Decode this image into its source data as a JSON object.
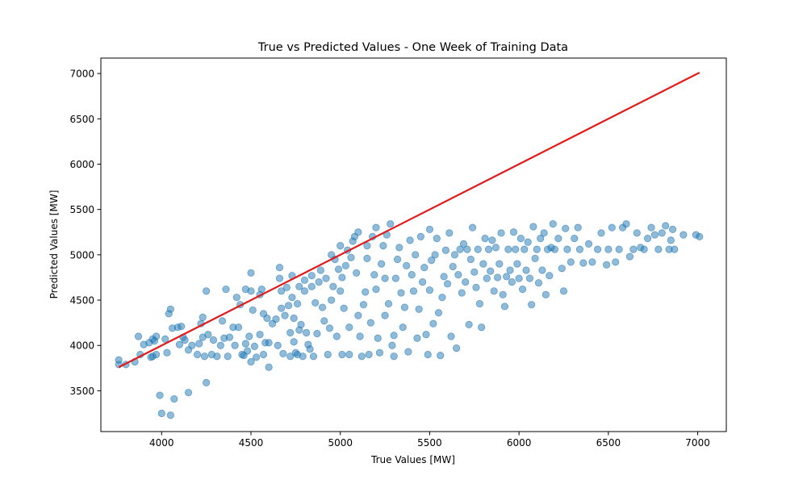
{
  "chart_data": {
    "type": "scatter",
    "title": "True vs Predicted Values - One Week of Training Data",
    "xlabel": "True Values [MW]",
    "ylabel": "Predicted Values [MW]",
    "xlim": [
      3660,
      7160
    ],
    "ylim": [
      3050,
      7170
    ],
    "xticks": [
      4000,
      4500,
      5000,
      5500,
      6000,
      6500,
      7000
    ],
    "yticks": [
      3500,
      4000,
      4500,
      5000,
      5500,
      6000,
      6500,
      7000
    ],
    "grid": false,
    "colors": {
      "points": "#1f77b4",
      "ideal_line": "#e31a1c"
    },
    "ideal_line": {
      "x": [
        3760,
        7010
      ],
      "y": [
        3760,
        7010
      ]
    },
    "series": [
      {
        "points": [
          [
            3760,
            3840
          ],
          [
            3760,
            3790
          ],
          [
            3800,
            3790
          ],
          [
            3850,
            3820
          ],
          [
            3880,
            3900
          ],
          [
            3870,
            4100
          ],
          [
            3900,
            4010
          ],
          [
            3930,
            4030
          ],
          [
            3940,
            3870
          ],
          [
            3950,
            4070
          ],
          [
            3950,
            3880
          ],
          [
            3960,
            4050
          ],
          [
            3970,
            3900
          ],
          [
            3970,
            4100
          ],
          [
            3990,
            3450
          ],
          [
            4000,
            3250
          ],
          [
            4020,
            4070
          ],
          [
            4030,
            3920
          ],
          [
            4040,
            4350
          ],
          [
            4050,
            4400
          ],
          [
            4050,
            3230
          ],
          [
            4060,
            4190
          ],
          [
            4070,
            3410
          ],
          [
            4090,
            4200
          ],
          [
            4100,
            4010
          ],
          [
            4110,
            4210
          ],
          [
            4120,
            4090
          ],
          [
            4130,
            4060
          ],
          [
            4150,
            3480
          ],
          [
            4150,
            3950
          ],
          [
            4170,
            4000
          ],
          [
            4200,
            3900
          ],
          [
            4210,
            4020
          ],
          [
            4220,
            4240
          ],
          [
            4230,
            4310
          ],
          [
            4230,
            4090
          ],
          [
            4240,
            3880
          ],
          [
            4250,
            4600
          ],
          [
            4250,
            3590
          ],
          [
            4260,
            4120
          ],
          [
            4280,
            3900
          ],
          [
            4290,
            4060
          ],
          [
            4310,
            3880
          ],
          [
            4330,
            4000
          ],
          [
            4340,
            4270
          ],
          [
            4350,
            4080
          ],
          [
            4360,
            4620
          ],
          [
            4370,
            3880
          ],
          [
            4380,
            4090
          ],
          [
            4400,
            4200
          ],
          [
            4410,
            4000
          ],
          [
            4420,
            4530
          ],
          [
            4430,
            4200
          ],
          [
            4440,
            4450
          ],
          [
            4450,
            3900
          ],
          [
            4460,
            3890
          ],
          [
            4470,
            4620
          ],
          [
            4470,
            4020
          ],
          [
            4480,
            3940
          ],
          [
            4490,
            4100
          ],
          [
            4500,
            3820
          ],
          [
            4500,
            4600
          ],
          [
            4500,
            4800
          ],
          [
            4510,
            4390
          ],
          [
            4520,
            3990
          ],
          [
            4530,
            3870
          ],
          [
            4550,
            4560
          ],
          [
            4550,
            4120
          ],
          [
            4560,
            4620
          ],
          [
            4570,
            3900
          ],
          [
            4570,
            4350
          ],
          [
            4580,
            4030
          ],
          [
            4590,
            4300
          ],
          [
            4600,
            4030
          ],
          [
            4600,
            3760
          ],
          [
            4620,
            4240
          ],
          [
            4640,
            4290
          ],
          [
            4650,
            4000
          ],
          [
            4660,
            4740
          ],
          [
            4660,
            4860
          ],
          [
            4670,
            4600
          ],
          [
            4670,
            4410
          ],
          [
            4680,
            3910
          ],
          [
            4690,
            4330
          ],
          [
            4700,
            4640
          ],
          [
            4710,
            4440
          ],
          [
            4720,
            4140
          ],
          [
            4720,
            3880
          ],
          [
            4730,
            4530
          ],
          [
            4730,
            4770
          ],
          [
            4740,
            4040
          ],
          [
            4740,
            4300
          ],
          [
            4750,
            3920
          ],
          [
            4760,
            4460
          ],
          [
            4760,
            3900
          ],
          [
            4770,
            4170
          ],
          [
            4770,
            4650
          ],
          [
            4780,
            4230
          ],
          [
            4790,
            3880
          ],
          [
            4800,
            4600
          ],
          [
            4800,
            4720
          ],
          [
            4810,
            4140
          ],
          [
            4820,
            4010
          ],
          [
            4830,
            3960
          ],
          [
            4840,
            4770
          ],
          [
            4840,
            4650
          ],
          [
            4850,
            3880
          ],
          [
            4860,
            4470
          ],
          [
            4870,
            4130
          ],
          [
            4880,
            4700
          ],
          [
            4890,
            4830
          ],
          [
            4900,
            4420
          ],
          [
            4910,
            4270
          ],
          [
            4920,
            4740
          ],
          [
            4930,
            3900
          ],
          [
            4940,
            4190
          ],
          [
            4950,
            4500
          ],
          [
            4950,
            5000
          ],
          [
            4960,
            4650
          ],
          [
            4970,
            4950
          ],
          [
            4980,
            4100
          ],
          [
            4990,
            4840
          ],
          [
            5000,
            4600
          ],
          [
            5000,
            5100
          ],
          [
            5010,
            3900
          ],
          [
            5010,
            4750
          ],
          [
            5020,
            4410
          ],
          [
            5030,
            4880
          ],
          [
            5040,
            5050
          ],
          [
            5050,
            4200
          ],
          [
            5050,
            3900
          ],
          [
            5060,
            4970
          ],
          [
            5070,
            5150
          ],
          [
            5080,
            5200
          ],
          [
            5090,
            4800
          ],
          [
            5100,
            4330
          ],
          [
            5100,
            5250
          ],
          [
            5110,
            4100
          ],
          [
            5120,
            3880
          ],
          [
            5130,
            4450
          ],
          [
            5140,
            4590
          ],
          [
            5150,
            5100
          ],
          [
            5150,
            4960
          ],
          [
            5160,
            3900
          ],
          [
            5170,
            4250
          ],
          [
            5180,
            5200
          ],
          [
            5190,
            4780
          ],
          [
            5200,
            4620
          ],
          [
            5200,
            5300
          ],
          [
            5210,
            4080
          ],
          [
            5220,
            3920
          ],
          [
            5230,
            4900
          ],
          [
            5240,
            5100
          ],
          [
            5250,
            4330
          ],
          [
            5250,
            4740
          ],
          [
            5260,
            5220
          ],
          [
            5270,
            4460
          ],
          [
            5280,
            5340
          ],
          [
            5290,
            4000
          ],
          [
            5300,
            4110
          ],
          [
            5300,
            3880
          ],
          [
            5310,
            4740
          ],
          [
            5320,
            4950
          ],
          [
            5330,
            5080
          ],
          [
            5340,
            4580
          ],
          [
            5350,
            4200
          ],
          [
            5360,
            4420
          ],
          [
            5370,
            4880
          ],
          [
            5380,
            3930
          ],
          [
            5390,
            5160
          ],
          [
            5400,
            4780
          ],
          [
            5410,
            4600
          ],
          [
            5420,
            5000
          ],
          [
            5430,
            4080
          ],
          [
            5440,
            4400
          ],
          [
            5450,
            5200
          ],
          [
            5460,
            4700
          ],
          [
            5470,
            4860
          ],
          [
            5480,
            4120
          ],
          [
            5490,
            3900
          ],
          [
            5500,
            5280
          ],
          [
            5500,
            4610
          ],
          [
            5510,
            4940
          ],
          [
            5520,
            4240
          ],
          [
            5530,
            5000
          ],
          [
            5540,
            5180
          ],
          [
            5550,
            4360
          ],
          [
            5560,
            3890
          ],
          [
            5570,
            4530
          ],
          [
            5580,
            4760
          ],
          [
            5590,
            5050
          ],
          [
            5600,
            4680
          ],
          [
            5610,
            5240
          ],
          [
            5620,
            4100
          ],
          [
            5630,
            4870
          ],
          [
            5640,
            5000
          ],
          [
            5650,
            3970
          ],
          [
            5660,
            4780
          ],
          [
            5670,
            5060
          ],
          [
            5680,
            4580
          ],
          [
            5690,
            5120
          ],
          [
            5700,
            4700
          ],
          [
            5710,
            5060
          ],
          [
            5720,
            4230
          ],
          [
            5730,
            4950
          ],
          [
            5740,
            5300
          ],
          [
            5750,
            4810
          ],
          [
            5760,
            4640
          ],
          [
            5770,
            5060
          ],
          [
            5780,
            4460
          ],
          [
            5790,
            4200
          ],
          [
            5800,
            4900
          ],
          [
            5810,
            5180
          ],
          [
            5820,
            4740
          ],
          [
            5830,
            5060
          ],
          [
            5840,
            4820
          ],
          [
            5850,
            5160
          ],
          [
            5860,
            4600
          ],
          [
            5870,
            5080
          ],
          [
            5880,
            4750
          ],
          [
            5890,
            4900
          ],
          [
            5900,
            5240
          ],
          [
            5910,
            4560
          ],
          [
            5920,
            4430
          ],
          [
            5930,
            4760
          ],
          [
            5940,
            5060
          ],
          [
            5950,
            4830
          ],
          [
            5960,
            4700
          ],
          [
            5970,
            5250
          ],
          [
            5980,
            5060
          ],
          [
            5990,
            4900
          ],
          [
            6000,
            4740
          ],
          [
            6010,
            5180
          ],
          [
            6020,
            4620
          ],
          [
            6030,
            5060
          ],
          [
            6040,
            4830
          ],
          [
            6050,
            5140
          ],
          [
            6060,
            4740
          ],
          [
            6070,
            4450
          ],
          [
            6080,
            5310
          ],
          [
            6090,
            4960
          ],
          [
            6100,
            5060
          ],
          [
            6110,
            4690
          ],
          [
            6120,
            5180
          ],
          [
            6130,
            4830
          ],
          [
            6140,
            5240
          ],
          [
            6150,
            4560
          ],
          [
            6160,
            5060
          ],
          [
            6170,
            4770
          ],
          [
            6180,
            5080
          ],
          [
            6190,
            5340
          ],
          [
            6200,
            5060
          ],
          [
            6220,
            5180
          ],
          [
            6240,
            4850
          ],
          [
            6250,
            4600
          ],
          [
            6260,
            5290
          ],
          [
            6270,
            5060
          ],
          [
            6290,
            4920
          ],
          [
            6310,
            5180
          ],
          [
            6330,
            5300
          ],
          [
            6340,
            5060
          ],
          [
            6360,
            4910
          ],
          [
            6390,
            5120
          ],
          [
            6410,
            4920
          ],
          [
            6440,
            5060
          ],
          [
            6460,
            5240
          ],
          [
            6490,
            4890
          ],
          [
            6500,
            5060
          ],
          [
            6520,
            5300
          ],
          [
            6540,
            4920
          ],
          [
            6560,
            5060
          ],
          [
            6580,
            5300
          ],
          [
            6600,
            5340
          ],
          [
            6620,
            4980
          ],
          [
            6640,
            5060
          ],
          [
            6660,
            5240
          ],
          [
            6680,
            5080
          ],
          [
            6700,
            5060
          ],
          [
            6720,
            5180
          ],
          [
            6740,
            5300
          ],
          [
            6760,
            5220
          ],
          [
            6780,
            5060
          ],
          [
            6800,
            5240
          ],
          [
            6820,
            5320
          ],
          [
            6840,
            5060
          ],
          [
            6850,
            5160
          ],
          [
            6860,
            5280
          ],
          [
            6870,
            5060
          ],
          [
            6920,
            5220
          ],
          [
            6990,
            5220
          ],
          [
            7010,
            5200
          ]
        ]
      }
    ]
  }
}
